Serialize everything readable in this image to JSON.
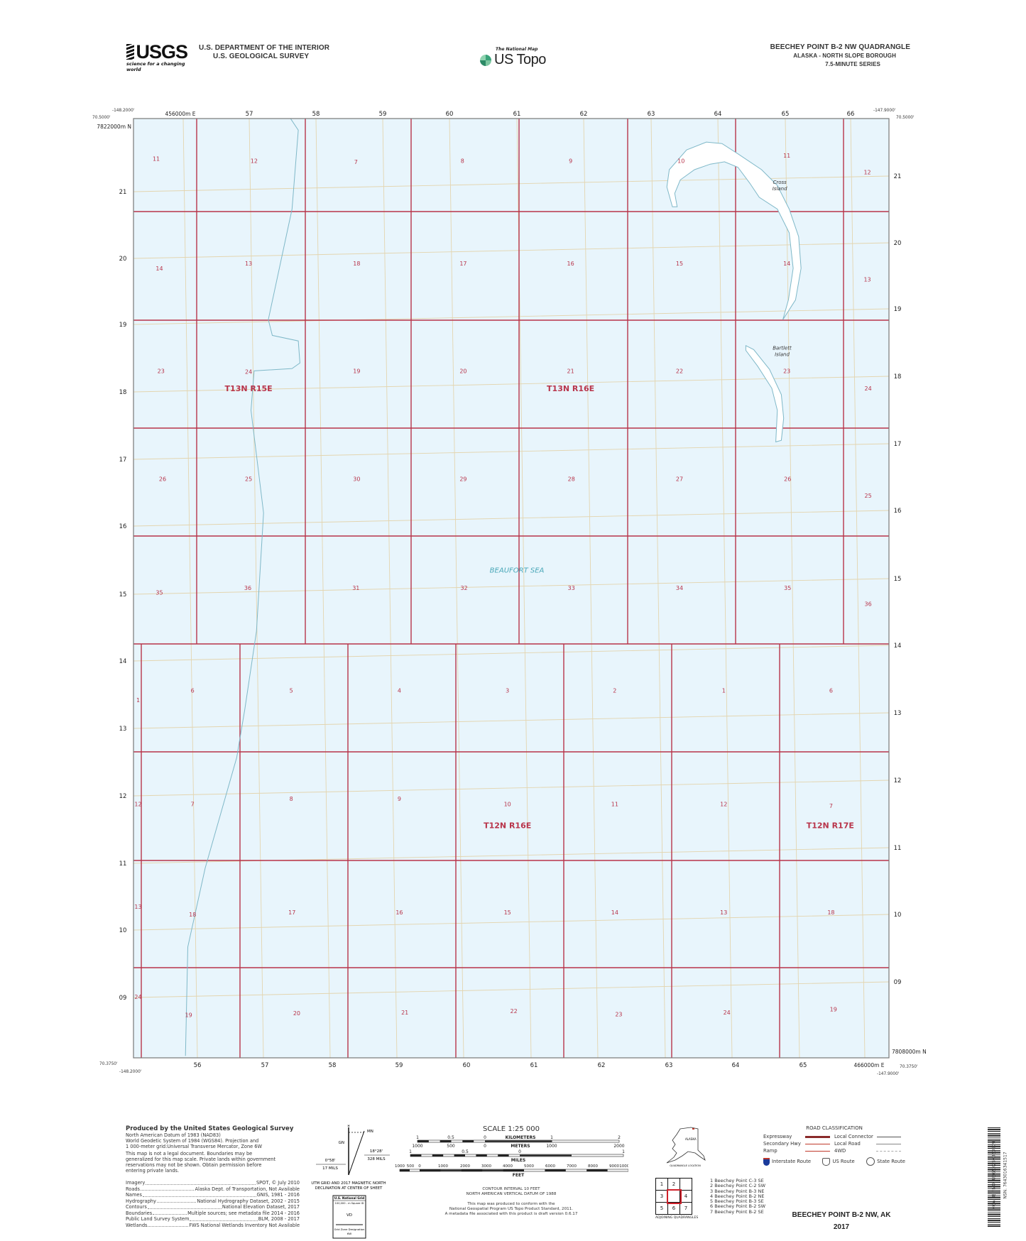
{
  "header": {
    "logo_text": "USGS",
    "logo_tagline": "science for a changing world",
    "agency_line1": "U.S. DEPARTMENT OF THE INTERIOR",
    "agency_line2": "U.S. GEOLOGICAL SURVEY",
    "national_map": "The National Map",
    "us_topo": "US Topo",
    "quad_title": "BEECHEY POINT B-2 NW QUADRANGLE",
    "quad_region": "ALASKA - NORTH SLOPE BOROUGH",
    "series": "7.5-MINUTE SERIES"
  },
  "map": {
    "corners": {
      "top_left_lon": "-148.2000'",
      "top_left_lat": "70.5000'",
      "top_right_lon": "-147.9000'",
      "top_right_lat": "70.5000'",
      "bottom_left_lat": "70.3750'",
      "bottom_left_lon": "-148.2000'",
      "bottom_right_lon": "-147.9000'",
      "bottom_right_lat": "70.3750'"
    },
    "easting_first_top": "456000m E",
    "easting_last_bottom": "466000m E",
    "northing_first_left": "7822000m N",
    "northing_last_right": "7808000m N",
    "eastings_top": [
      "57",
      "58",
      "59",
      "60",
      "61",
      "62",
      "63",
      "64",
      "65",
      "66"
    ],
    "eastings_bottom": [
      "56",
      "57",
      "58",
      "59",
      "60",
      "61",
      "62",
      "63",
      "64",
      "65"
    ],
    "northings_left": [
      "21",
      "20",
      "19",
      "18",
      "17",
      "16",
      "15",
      "14",
      "13",
      "12",
      "11",
      "10",
      "09"
    ],
    "northings_right": [
      "21",
      "20",
      "19",
      "18",
      "17",
      "16",
      "15",
      "14",
      "13",
      "12",
      "11",
      "10",
      "09"
    ],
    "sections_upper": [
      [
        "11",
        "12",
        "7",
        "8",
        "9",
        "10",
        "11",
        "12"
      ],
      [
        "14",
        "13",
        "18",
        "17",
        "16",
        "15",
        "14",
        "13"
      ],
      [
        "23",
        "24",
        "19",
        "20",
        "21",
        "22",
        "23",
        "24"
      ],
      [
        "26",
        "25",
        "30",
        "29",
        "28",
        "27",
        "26",
        "25"
      ],
      [
        "35",
        "36",
        "31",
        "32",
        "33",
        "34",
        "35",
        "36"
      ]
    ],
    "sections_lower": [
      [
        "1",
        "6",
        "5",
        "4",
        "3",
        "2",
        "1",
        "6"
      ],
      [
        "12",
        "7",
        "8",
        "9",
        "10",
        "11",
        "12",
        "7"
      ],
      [
        "13",
        "18",
        "17",
        "16",
        "15",
        "14",
        "13",
        "18"
      ],
      [
        "24",
        "19",
        "20",
        "21",
        "22",
        "23",
        "24",
        "19"
      ]
    ],
    "townships": [
      "T13N R15E",
      "T13N R16E",
      "T12N R16E",
      "T12N R17E"
    ],
    "water_label": "BEAUFORT SEA",
    "islands": [
      [
        "Cross",
        "Island"
      ],
      [
        "Bartlett",
        "Island"
      ]
    ],
    "colors": {
      "water": "#e8f5fc",
      "plss": "#b8344a",
      "grid": "#e3d5b0",
      "shoreline": "#7fb8c8",
      "label": "#b8344a"
    }
  },
  "footer": {
    "produced_by": "Produced by the United States Geological Survey",
    "datum_lines": [
      "North American Datum of 1983 (NAD83)",
      "World Geodetic System of 1984 (WGS84). Projection and",
      "1 000-meter grid:Universal Transverse Mercator, Zone 6W"
    ],
    "disclaimer": [
      "This map is not a legal document. Boundaries may be",
      "generalized for this map scale. Private lands within government",
      "reservations may not be shown. Obtain permission before",
      "entering private lands."
    ],
    "credits": [
      {
        "label": "Imagery",
        "value": "SPOT, © July 2010"
      },
      {
        "label": "Roads",
        "value": "Alaska Dept. of Transportation, Not Available"
      },
      {
        "label": "Names",
        "value": "GNIS, 1981 - 2016"
      },
      {
        "label": "Hydrography",
        "value": "National Hydrography Dataset, 2002 - 2015"
      },
      {
        "label": "Contours",
        "value": "National Elevation Dataset, 2017"
      },
      {
        "label": "Boundaries",
        "value": "Multiple sources; see metadata file 2014 - 2016"
      },
      {
        "label": "Public Land Survey System",
        "value": "BLM, 2008 - 2017"
      },
      {
        "label": "Wetlands",
        "value": "FWS National Wetlands Inventory Not Available"
      }
    ],
    "declination": {
      "gn": "GN",
      "mn": "MN",
      "grid_angle": "0°58'",
      "grid_mils": "17 MILS",
      "mag_angle": "18°28'",
      "mag_mils": "328 MILS",
      "caption": [
        "UTM GRID AND 2017 MAGNETIC NORTH",
        "DECLINATION AT CENTER OF SHEET"
      ]
    },
    "usng": {
      "title": "U.S. National Grid",
      "subtitle": "100,000 - m Square ID",
      "square_id": "VD",
      "gzd_label": "Grid Zone Designation",
      "gzd": "6W"
    },
    "scale": {
      "title": "SCALE 1:25 000",
      "km_ticks": [
        "1",
        "0.5",
        "0",
        "1",
        "2"
      ],
      "km_label": "KILOMETERS",
      "m_ticks": [
        "1000",
        "500",
        "0",
        "1000",
        "2000"
      ],
      "m_label": "METERS",
      "mi_ticks": [
        "1",
        "0.5",
        "0",
        "1"
      ],
      "mi_label": "MILES",
      "ft_ticks": [
        "1000",
        "500",
        "0",
        "1000",
        "2000",
        "3000",
        "4000",
        "5000",
        "6000",
        "7000",
        "8000",
        "9000",
        "10000"
      ],
      "ft_label": "FEET"
    },
    "contour": [
      "CONTOUR INTERVAL 10 FEET",
      "NORTH AMERICAN VERTICAL DATUM OF 1988"
    ],
    "conform": [
      "This map was produced to conform with the",
      "National Geospatial Program US Topo Product Standard, 2011.",
      "A metadata file associated with this product is draft version 0.6.17"
    ],
    "location": {
      "state": "ALASKA",
      "caption": "QUADRANGLE LOCATION"
    },
    "road_classification": {
      "title": "ROAD CLASSIFICATION",
      "left": [
        {
          "label": "Expressway",
          "color": "#8a2a2a"
        },
        {
          "label": "Secondary Hwy",
          "color": "#c0392b"
        },
        {
          "label": "Ramp",
          "color": "#c0392b"
        }
      ],
      "right": [
        {
          "label": "Local Connector",
          "color": "#555555"
        },
        {
          "label": "Local Road",
          "color": "#888888"
        },
        {
          "label": "4WD",
          "color": "#aaaaaa"
        }
      ],
      "shields": [
        "Interstate Route",
        "US Route",
        "State Route"
      ]
    },
    "adjoining": {
      "grid": [
        "1",
        "2",
        "",
        "3",
        "",
        "4",
        "5",
        "6",
        "7"
      ],
      "caption": "ADJOINING QUADRANGLES",
      "list": [
        "1 Beechey Point C-3 SE",
        "2 Beechey Point C-2 SW",
        "3 Beechey Point B-3 NE",
        "4 Beechey Point B-2 NE",
        "5 Beechey Point B-3 SE",
        "6 Beechey Point B-2 SW",
        "7 Beechey Point B-2 SE"
      ]
    },
    "sheet_title": "BEECHEY POINT B-2 NW,  AK",
    "year": "2017",
    "barcode_text": [
      "NSN. 7643016341517",
      "NGA REF NO. USGSX25K333979"
    ]
  }
}
